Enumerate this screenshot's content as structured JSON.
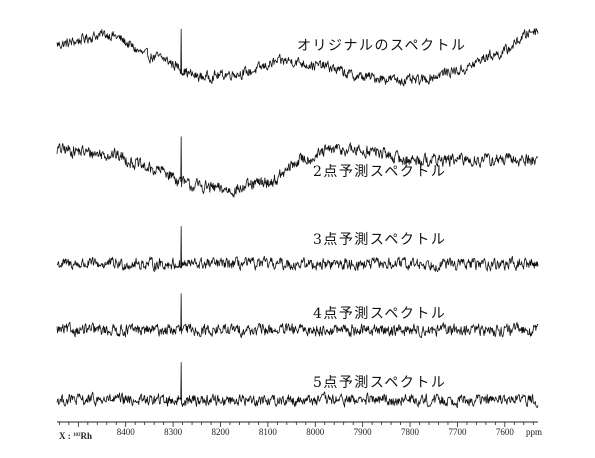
{
  "chart_data": {
    "type": "line",
    "x_unit": "ppm",
    "nucleus_label": "X : ",
    "nucleus_mass": "103",
    "nucleus_symbol": "Rh",
    "xlim": [
      8545,
      7530
    ],
    "x_reversed": true,
    "ticks": [
      8400,
      8300,
      8200,
      8100,
      8000,
      7900,
      7800,
      7700,
      7600
    ],
    "tick_labels": [
      "8400",
      "8300",
      "8200",
      "8100",
      "8000",
      "7900",
      "7800",
      "7700",
      "7600"
    ],
    "peak_ppm": 8283,
    "grid": false,
    "series": [
      {
        "name": "オリジナルのスペクトル",
        "baseline_ppm": [
          8545,
          8440,
          8340,
          8240,
          8160,
          8060,
          7990,
          7900,
          7790,
          7700,
          7620,
          7530
        ],
        "baseline_level": [
          0.7,
          1.1,
          0.2,
          -0.6,
          -0.45,
          0.05,
          -0.15,
          -0.6,
          -0.75,
          -0.35,
          0.3,
          1.3
        ],
        "noise_level": 0.18,
        "peak_height": 1.6
      },
      {
        "name": "2点予測スペクトル",
        "baseline_ppm": [
          8545,
          8440,
          8330,
          8260,
          8180,
          8100,
          8020,
          7960,
          7890,
          7800,
          7530
        ],
        "baseline_level": [
          0.35,
          0.2,
          -0.35,
          -0.85,
          -1.0,
          -0.75,
          0.05,
          0.35,
          0.3,
          0.0,
          0.0
        ],
        "noise_level": 0.18,
        "peak_height": 1.5
      },
      {
        "name": "3点予測スペクトル",
        "baseline_ppm": [
          8545,
          7530
        ],
        "baseline_level": [
          0,
          0
        ],
        "noise_level": 0.2,
        "peak_height": 1.5
      },
      {
        "name": "4点予測スペクトル",
        "baseline_ppm": [
          8545,
          7530
        ],
        "baseline_level": [
          0,
          0
        ],
        "noise_level": 0.2,
        "peak_height": 1.45
      },
      {
        "name": "5点予測スペクトル",
        "baseline_ppm": [
          8545,
          7530
        ],
        "baseline_level": [
          0,
          0
        ],
        "noise_level": 0.2,
        "peak_height": 1.5
      }
    ]
  }
}
